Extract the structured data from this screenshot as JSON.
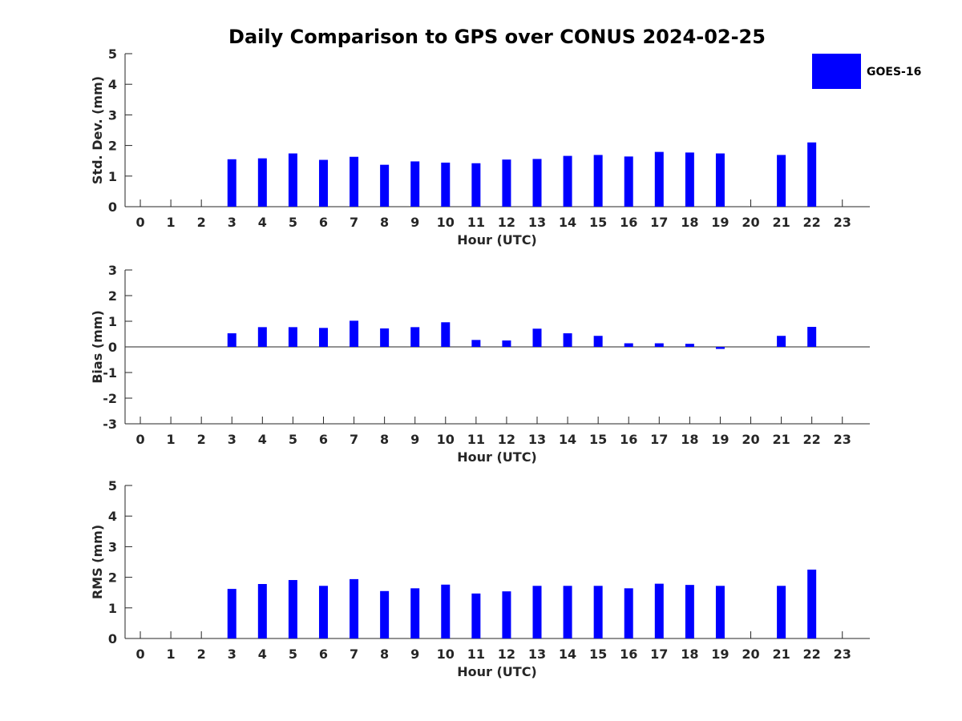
{
  "title": "Daily Comparison to GPS over CONUS 2024-02-25",
  "legend": {
    "label": "GOES-16"
  },
  "colors": {
    "bar": "#0000ff",
    "axis": "#262626"
  },
  "chart_data": [
    {
      "type": "bar",
      "title": "Daily Comparison to GPS over CONUS 2024-02-25",
      "xlabel": "Hour (UTC)",
      "ylabel": "Std. Dev. (mm)",
      "x": [
        0,
        1,
        2,
        3,
        4,
        5,
        6,
        7,
        8,
        9,
        10,
        11,
        12,
        13,
        14,
        15,
        16,
        17,
        18,
        19,
        20,
        21,
        22,
        23
      ],
      "ylim": [
        0,
        5
      ],
      "yticks": [
        0,
        1,
        2,
        3,
        4,
        5
      ],
      "series": [
        {
          "name": "GOES-16",
          "values": [
            null,
            null,
            null,
            1.55,
            1.58,
            1.74,
            1.53,
            1.63,
            1.37,
            1.48,
            1.44,
            1.42,
            1.54,
            1.56,
            1.66,
            1.69,
            1.64,
            1.79,
            1.77,
            1.74,
            null,
            1.69,
            2.1,
            null
          ]
        }
      ],
      "legend": "top-right",
      "grid": false
    },
    {
      "type": "bar",
      "title": "",
      "xlabel": "Hour (UTC)",
      "ylabel": "Bias (mm)",
      "x": [
        0,
        1,
        2,
        3,
        4,
        5,
        6,
        7,
        8,
        9,
        10,
        11,
        12,
        13,
        14,
        15,
        16,
        17,
        18,
        19,
        20,
        21,
        22,
        23
      ],
      "ylim": [
        -3,
        3
      ],
      "yticks": [
        -3,
        -2,
        -1,
        0,
        1,
        2,
        3
      ],
      "series": [
        {
          "name": "GOES-16",
          "values": [
            null,
            null,
            null,
            0.53,
            0.77,
            0.77,
            0.74,
            1.02,
            0.72,
            0.77,
            0.96,
            0.27,
            0.25,
            0.71,
            0.53,
            0.43,
            0.14,
            0.14,
            0.12,
            -0.08,
            null,
            0.43,
            0.78,
            null
          ]
        }
      ],
      "zero_line": true,
      "grid": false
    },
    {
      "type": "bar",
      "title": "",
      "xlabel": "Hour (UTC)",
      "ylabel": "RMS (mm)",
      "x": [
        0,
        1,
        2,
        3,
        4,
        5,
        6,
        7,
        8,
        9,
        10,
        11,
        12,
        13,
        14,
        15,
        16,
        17,
        18,
        19,
        20,
        21,
        22,
        23
      ],
      "ylim": [
        0,
        5
      ],
      "yticks": [
        0,
        1,
        2,
        3,
        4,
        5
      ],
      "series": [
        {
          "name": "GOES-16",
          "values": [
            null,
            null,
            null,
            1.62,
            1.78,
            1.91,
            1.72,
            1.94,
            1.55,
            1.64,
            1.76,
            1.47,
            1.54,
            1.72,
            1.72,
            1.72,
            1.64,
            1.79,
            1.75,
            1.72,
            null,
            1.72,
            2.25,
            null
          ]
        }
      ],
      "grid": false
    }
  ]
}
